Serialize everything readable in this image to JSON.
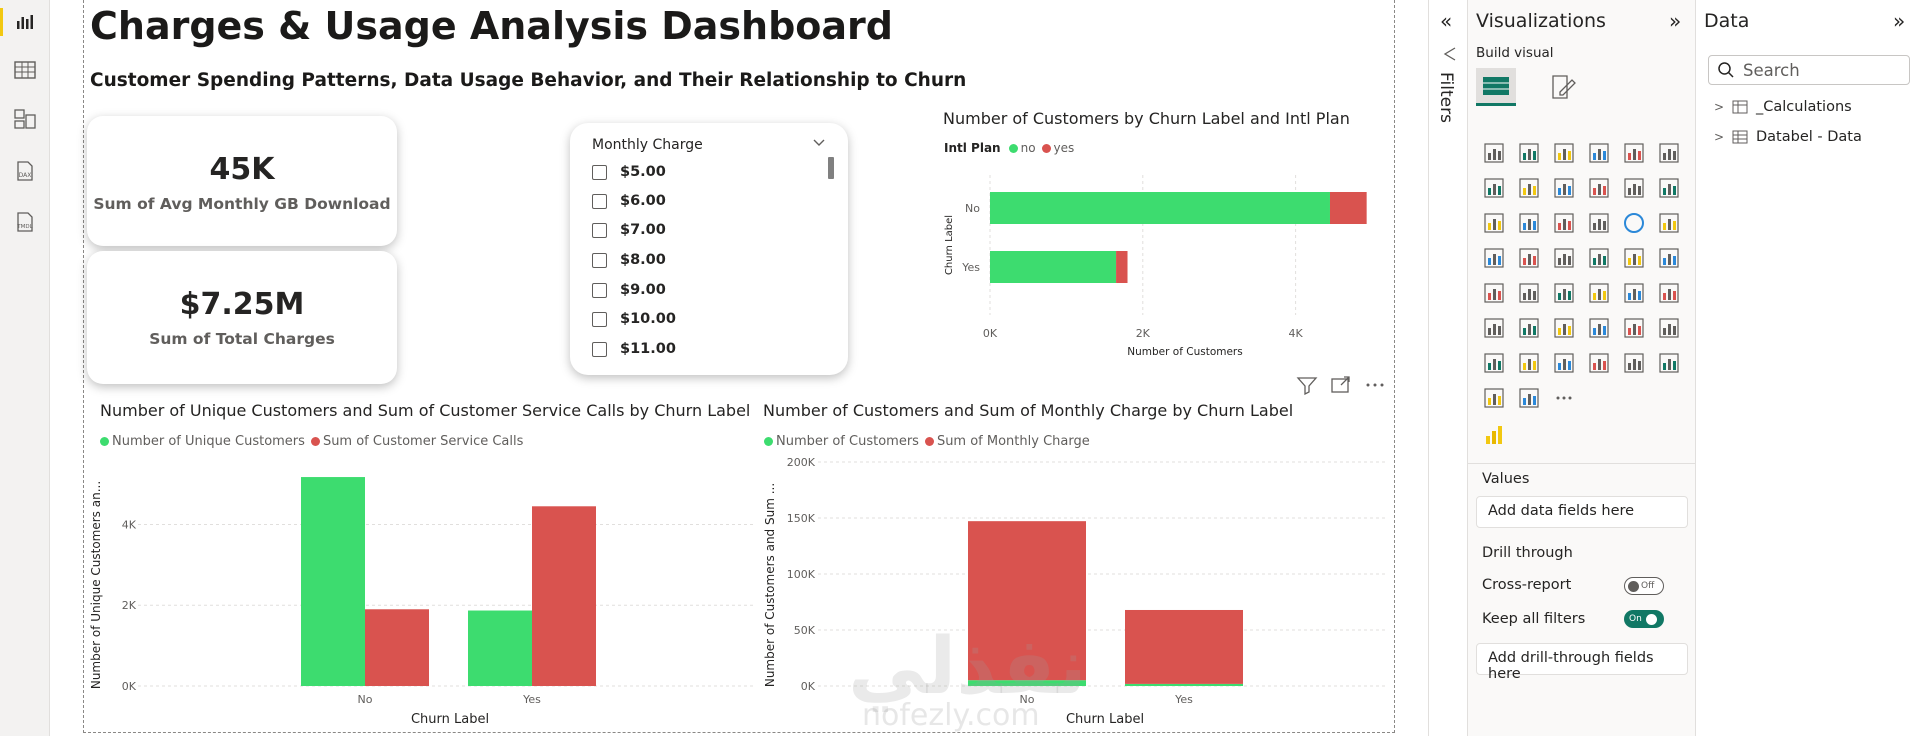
{
  "app": {
    "left_nav": [
      {
        "name": "report-view-icon"
      },
      {
        "name": "table-view-icon"
      },
      {
        "name": "model-view-icon"
      },
      {
        "name": "dax-query-view-icon",
        "label": "DAX"
      },
      {
        "name": "tmdl-view-icon",
        "label": "TMDL"
      }
    ]
  },
  "report": {
    "title": "Charges & Usage Analysis Dashboard",
    "subtitle": "Customer Spending Patterns, Data Usage Behavior, and Their Relationship to Churn",
    "cards": [
      {
        "value": "45K",
        "label": "Sum of Avg Monthly GB Download"
      },
      {
        "value": "$7.25M",
        "label": "Sum of Total Charges"
      }
    ],
    "slicer": {
      "header": "Monthly Charge",
      "items": [
        "$5.00",
        "$6.00",
        "$7.00",
        "$8.00",
        "$9.00",
        "$10.00",
        "$11.00"
      ]
    },
    "visual_toolbar": [
      "filter-icon",
      "focus-mode-icon",
      "more-options-icon"
    ],
    "watermark": {
      "arabic": "نفذلي",
      "latin": "nofezly.com"
    }
  },
  "colors": {
    "green": "#3ddc6f",
    "red": "#d9534f",
    "accent_yellow": "#f2c811",
    "toggle_on": "#117865"
  },
  "chart_data": [
    {
      "type": "bar",
      "orientation": "horizontal",
      "stacked": true,
      "title": "Number of Customers by Churn Label and Intl Plan",
      "legend_title": "Intl Plan",
      "categories": [
        "No",
        "Yes"
      ],
      "series": [
        {
          "name": "no",
          "values": [
            4450,
            1650
          ]
        },
        {
          "name": "yes",
          "values": [
            480,
            150
          ]
        }
      ],
      "ylabel": "Churn Label",
      "xlabel": "Number of Customers",
      "xticks": [
        "0K",
        "2K",
        "4K"
      ],
      "xlim": [
        0,
        5000
      ],
      "legend": "top-left"
    },
    {
      "type": "bar",
      "title": "Number of Unique Customers and Sum of Customer Service Calls by Churn Label",
      "categories": [
        "No",
        "Yes"
      ],
      "series": [
        {
          "name": "Number of Unique Customers",
          "values": [
            5174,
            1869
          ]
        },
        {
          "name": "Sum of Customer Service Calls",
          "values": [
            1900,
            4450
          ]
        }
      ],
      "xlabel": "Churn Label",
      "ylabel": "Number of Unique Customers an...",
      "yticks": [
        "0K",
        "2K",
        "4K"
      ],
      "ylim": [
        0,
        5200
      ],
      "legend": "top-left"
    },
    {
      "type": "bar",
      "stacked": true,
      "title": "Number of Customers and Sum of Monthly Charge by Churn Label",
      "categories": [
        "No",
        "Yes"
      ],
      "series": [
        {
          "name": "Number of Customers",
          "values": [
            5174,
            1869
          ]
        },
        {
          "name": "Sum of Monthly Charge",
          "values": [
            142000,
            66000
          ]
        }
      ],
      "xlabel": "Churn Label",
      "ylabel": "Number of Customers and Sum ...",
      "yticks": [
        "0K",
        "50K",
        "100K",
        "150K",
        "200K"
      ],
      "ylim": [
        0,
        200000
      ],
      "legend": "top-left"
    }
  ],
  "panels": {
    "filters": {
      "label": "Filters"
    },
    "visualizations": {
      "title": "Visualizations",
      "build_visual": "Build visual",
      "icons": [
        "stacked-bar-chart-icon",
        "stacked-column-chart-icon",
        "clustered-bar-chart-icon",
        "clustered-column-chart-icon",
        "100-stacked-bar-chart-icon",
        "100-stacked-column-chart-icon",
        "line-chart-icon",
        "area-chart-icon",
        "stacked-area-chart-icon",
        "100-stacked-area-chart-icon",
        "line-and-stacked-column-chart-icon",
        "line-and-clustered-column-chart-icon",
        "ribbon-chart-icon",
        "waterfall-chart-icon",
        "funnel-chart-icon",
        "scatter-chart-icon",
        "pie-chart-icon",
        "donut-chart-icon",
        "treemap-icon",
        "map-icon",
        "filled-map-icon",
        "shape-map-icon",
        "azure-map-icon",
        "gauge-icon",
        "card-icon",
        "multi-row-card-icon",
        "slicer-icon",
        "table-icon",
        "matrix-icon",
        "r-visual-icon",
        "python-visual-icon",
        "key-influencers-icon",
        "decomposition-tree-icon",
        "qa-icon",
        "smart-narrative-icon",
        "goals-icon",
        "paginated-report-icon",
        "power-apps-icon",
        "power-automate-icon",
        "metrics-icon",
        "image-icon",
        "custom-visual-icon",
        "fabric-icon",
        "narrative-icon",
        "more-visuals-icon"
      ],
      "values_label": "Values",
      "values_placeholder": "Add data fields here",
      "drill_through": "Drill through",
      "cross_report": "Cross-report",
      "cross_report_state": "Off",
      "keep_all_filters": "Keep all filters",
      "keep_all_filters_state": "On",
      "drill_placeholder": "Add drill-through fields here"
    },
    "data": {
      "title": "Data",
      "search_placeholder": "Search",
      "tables": [
        "_Calculations",
        "Databel - Data"
      ]
    }
  }
}
